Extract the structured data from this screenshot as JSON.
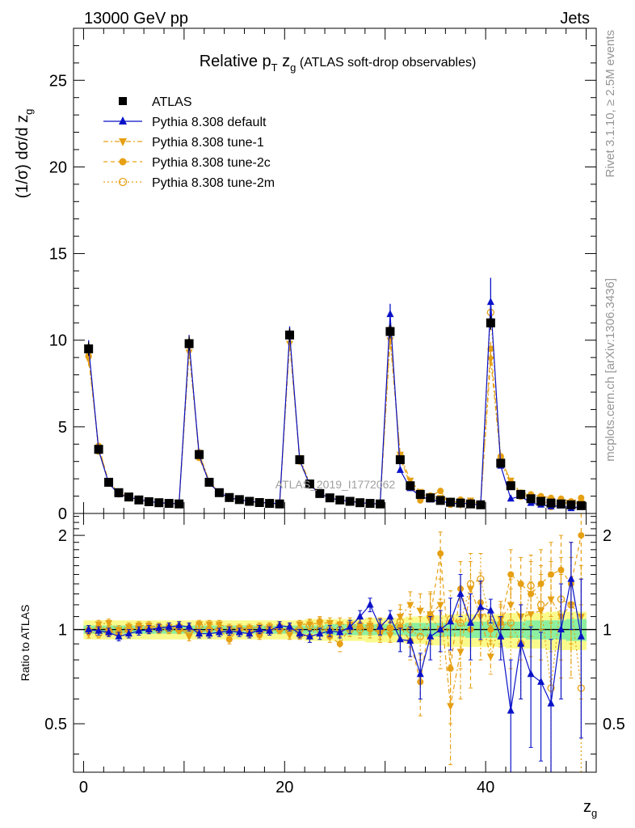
{
  "header": {
    "left": "13000 GeV pp",
    "right": "Jets"
  },
  "side_text": {
    "rivet": "Rivet 3.1.10, ≥ 2.5M events",
    "mcplots": "mcplots.cern.ch [arXiv:1306.3436]"
  },
  "watermark": "ATLAS_2019_I1772062",
  "colors": {
    "atlas": "#000000",
    "default": "#0a12c8",
    "orange": "#e6a014",
    "band_green": "#8cf0a0",
    "band_yellow": "#fafa8c"
  },
  "chart_data": [
    {
      "type": "line",
      "title": "Relative p",
      "title_sub": "T",
      "title_mid": " z",
      "title_sub2": "g",
      "title_tail": " (ATLAS soft-drop observables)",
      "ylabel": "(1/σ) dσ/d z",
      "ylabel_sub": "g",
      "xlim": [
        -1,
        51
      ],
      "ylim": [
        0,
        28
      ],
      "yticks": [
        0,
        5,
        10,
        15,
        20,
        25
      ],
      "x": [
        0.5,
        1.5,
        2.5,
        3.5,
        4.5,
        5.5,
        6.5,
        7.5,
        8.5,
        9.5,
        10.5,
        11.5,
        12.5,
        13.5,
        14.5,
        15.5,
        16.5,
        17.5,
        18.5,
        19.5,
        20.5,
        21.5,
        22.5,
        23.5,
        24.5,
        25.5,
        26.5,
        27.5,
        28.5,
        29.5,
        30.5,
        31.5,
        32.5,
        33.5,
        34.5,
        35.5,
        36.5,
        37.5,
        38.5,
        39.5,
        40.5,
        41.5,
        42.5,
        43.5,
        44.5,
        45.5,
        46.5,
        47.5,
        48.5,
        49.5
      ],
      "series": [
        {
          "name": "ATLAS",
          "marker": "square",
          "values": [
            9.5,
            3.7,
            1.8,
            1.2,
            0.95,
            0.78,
            0.68,
            0.62,
            0.58,
            0.55,
            9.8,
            3.4,
            1.8,
            1.2,
            0.92,
            0.8,
            0.7,
            0.63,
            0.58,
            0.55,
            10.3,
            3.1,
            1.7,
            1.15,
            0.9,
            0.78,
            0.7,
            0.62,
            0.58,
            0.55,
            10.5,
            3.1,
            1.6,
            1.1,
            0.9,
            0.75,
            0.65,
            0.6,
            0.55,
            0.5,
            11.0,
            2.9,
            1.6,
            1.1,
            0.85,
            0.7,
            0.6,
            0.55,
            0.5,
            0.45
          ]
        },
        {
          "name": "Pythia 8.308 default",
          "marker": "triangle",
          "values": [
            9.6,
            3.65,
            1.75,
            1.1,
            0.95,
            0.8,
            0.68,
            0.62,
            0.58,
            0.56,
            9.9,
            3.35,
            1.75,
            1.2,
            0.9,
            0.8,
            0.7,
            0.64,
            0.6,
            0.56,
            10.4,
            3.05,
            1.65,
            1.15,
            0.88,
            0.78,
            0.7,
            0.62,
            0.57,
            0.55,
            11.5,
            2.5,
            1.45,
            1.0,
            0.8,
            0.7,
            0.6,
            0.55,
            0.6,
            0.45,
            12.2,
            2.75,
            0.85,
            1.0,
            0.6,
            0.5,
            0.4,
            0.45,
            0.3,
            0.4
          ]
        },
        {
          "name": "Pythia 8.308 tune-1",
          "marker": "triangle-down",
          "values": [
            8.9,
            3.8,
            1.85,
            1.2,
            0.92,
            0.8,
            0.7,
            0.62,
            0.6,
            0.56,
            9.3,
            3.5,
            1.85,
            1.22,
            0.92,
            0.8,
            0.7,
            0.64,
            0.59,
            0.56,
            9.8,
            3.2,
            1.75,
            1.2,
            0.95,
            0.8,
            0.72,
            0.64,
            0.6,
            0.56,
            10.0,
            3.4,
            1.9,
            1.25,
            1.0,
            0.9,
            0.7,
            0.5,
            0.75,
            0.55,
            8.9,
            3.1,
            1.9,
            1.2,
            0.95,
            0.8,
            0.75,
            0.6,
            0.6,
            0.6
          ]
        },
        {
          "name": "Pythia 8.308 tune-2c",
          "marker": "circle",
          "values": [
            9.1,
            3.9,
            1.8,
            1.1,
            0.93,
            0.8,
            0.7,
            0.62,
            0.6,
            0.55,
            9.9,
            3.2,
            1.8,
            1.2,
            0.85,
            0.82,
            0.7,
            0.6,
            0.6,
            0.55,
            10.2,
            3.0,
            1.65,
            1.2,
            0.85,
            0.8,
            0.72,
            0.64,
            0.58,
            0.55,
            10.6,
            3.2,
            1.7,
            0.75,
            1.0,
            1.3,
            0.5,
            0.8,
            0.6,
            0.5,
            9.5,
            3.3,
            1.8,
            1.2,
            1.1,
            1.0,
            0.9,
            0.85,
            0.7,
            0.9
          ]
        },
        {
          "name": "Pythia 8.308 tune-2m",
          "marker": "circle-open",
          "values": [
            9.4,
            3.6,
            1.75,
            1.18,
            0.95,
            0.8,
            0.68,
            0.62,
            0.58,
            0.55,
            9.7,
            3.5,
            1.8,
            1.2,
            0.9,
            0.8,
            0.7,
            0.62,
            0.58,
            0.55,
            10.3,
            3.1,
            1.75,
            1.15,
            0.9,
            0.78,
            0.7,
            0.62,
            0.58,
            0.55,
            10.6,
            3.3,
            1.6,
            1.1,
            1.0,
            0.75,
            0.7,
            0.65,
            0.7,
            0.55,
            11.6,
            3.0,
            1.7,
            1.0,
            1.0,
            0.85,
            0.4,
            0.7,
            0.6,
            0.45
          ]
        }
      ]
    },
    {
      "type": "line",
      "ylabel": "Ratio to ATLAS",
      "xlabel": "z",
      "xlabel_sub": "g",
      "xlim": [
        -1,
        51
      ],
      "ylim": [
        0.35,
        2.35
      ],
      "yticks": [
        0.5,
        1,
        2
      ],
      "xticks": [
        0,
        20,
        40
      ],
      "reference": 1,
      "band_green_halfwidth": [
        0.03,
        0.03,
        0.03,
        0.03,
        0.03,
        0.03,
        0.03,
        0.03,
        0.03,
        0.03,
        0.03,
        0.03,
        0.03,
        0.03,
        0.03,
        0.03,
        0.03,
        0.03,
        0.03,
        0.03,
        0.03,
        0.03,
        0.03,
        0.03,
        0.04,
        0.04,
        0.04,
        0.04,
        0.04,
        0.04,
        0.04,
        0.04,
        0.05,
        0.05,
        0.05,
        0.05,
        0.05,
        0.05,
        0.06,
        0.06,
        0.06,
        0.06,
        0.06,
        0.06,
        0.07,
        0.07,
        0.07,
        0.07,
        0.08,
        0.08
      ],
      "band_yellow_halfwidth": [
        0.07,
        0.07,
        0.07,
        0.07,
        0.07,
        0.07,
        0.07,
        0.07,
        0.07,
        0.07,
        0.07,
        0.07,
        0.07,
        0.07,
        0.07,
        0.07,
        0.07,
        0.07,
        0.07,
        0.07,
        0.07,
        0.07,
        0.08,
        0.08,
        0.08,
        0.08,
        0.08,
        0.08,
        0.09,
        0.09,
        0.09,
        0.09,
        0.1,
        0.1,
        0.11,
        0.11,
        0.12,
        0.12,
        0.12,
        0.12,
        0.12,
        0.12,
        0.13,
        0.13,
        0.13,
        0.13,
        0.14,
        0.14,
        0.14,
        0.14
      ],
      "series": [
        {
          "name": "Pythia 8.308 default",
          "marker": "triangle",
          "values": [
            1.0,
            0.99,
            0.98,
            0.95,
            0.97,
            0.99,
            1.0,
            1.01,
            1.02,
            1.03,
            1.02,
            0.97,
            0.97,
            0.98,
            0.99,
            0.98,
            0.97,
            1.0,
            0.99,
            1.03,
            1.02,
            0.97,
            0.95,
            0.97,
            0.99,
            0.98,
            1.02,
            1.1,
            1.2,
            1.02,
            1.1,
            0.93,
            0.92,
            0.72,
            0.95,
            1.0,
            1.06,
            1.3,
            1.05,
            1.18,
            1.15,
            0.95,
            0.55,
            0.9,
            0.72,
            0.68,
            0.58,
            1.0,
            1.45,
            0.95
          ],
          "err": [
            0.03,
            0.03,
            0.03,
            0.03,
            0.03,
            0.03,
            0.03,
            0.03,
            0.03,
            0.03,
            0.03,
            0.03,
            0.03,
            0.03,
            0.03,
            0.03,
            0.03,
            0.03,
            0.03,
            0.03,
            0.03,
            0.03,
            0.04,
            0.04,
            0.04,
            0.04,
            0.05,
            0.05,
            0.06,
            0.06,
            0.05,
            0.08,
            0.1,
            0.12,
            0.15,
            0.15,
            0.2,
            0.2,
            0.25,
            0.25,
            0.1,
            0.15,
            0.25,
            0.3,
            0.3,
            0.3,
            0.35,
            0.4,
            0.45,
            0.5
          ]
        },
        {
          "name": "Pythia 8.308 tune-1",
          "marker": "triangle-down",
          "values": [
            0.97,
            1.04,
            1.05,
            1.0,
            1.02,
            1.03,
            1.03,
            1.02,
            1.02,
            1.02,
            0.95,
            1.04,
            1.04,
            1.04,
            1.01,
            1.01,
            1.01,
            1.02,
            1.02,
            1.02,
            0.96,
            1.04,
            1.04,
            1.05,
            1.05,
            1.04,
            1.04,
            1.03,
            1.03,
            1.02,
            0.96,
            1.1,
            1.2,
            1.15,
            1.12,
            1.2,
            0.57,
            0.85,
            1.35,
            1.1,
            0.82,
            1.08,
            1.2,
            1.1,
            1.12,
            1.15,
            1.25,
            1.1,
            1.2,
            1.1
          ],
          "err": [
            0.03,
            0.03,
            0.03,
            0.03,
            0.03,
            0.03,
            0.03,
            0.03,
            0.03,
            0.03,
            0.03,
            0.03,
            0.03,
            0.03,
            0.03,
            0.03,
            0.03,
            0.03,
            0.03,
            0.03,
            0.03,
            0.03,
            0.04,
            0.04,
            0.04,
            0.05,
            0.05,
            0.06,
            0.06,
            0.07,
            0.05,
            0.1,
            0.12,
            0.15,
            0.2,
            0.25,
            0.2,
            0.25,
            0.3,
            0.3,
            0.1,
            0.15,
            0.25,
            0.3,
            0.3,
            0.35,
            0.4,
            0.4,
            0.5,
            0.5
          ]
        },
        {
          "name": "Pythia 8.308 tune-2c",
          "marker": "circle",
          "values": [
            1.0,
            1.02,
            1.0,
            0.97,
            0.99,
            1.02,
            1.02,
            1.01,
            1.02,
            1.0,
            1.01,
            0.98,
            1.0,
            1.0,
            0.93,
            1.01,
            0.98,
            0.96,
            1.02,
            1.0,
            1.01,
            0.96,
            0.95,
            1.06,
            0.95,
            0.9,
            1.02,
            1.02,
            1.0,
            0.98,
            1.01,
            1.02,
            0.92,
            0.68,
            1.1,
            1.75,
            0.75,
            1.35,
            1.0,
            1.22,
            1.0,
            1.05,
            1.5,
            1.4,
            1.3,
            1.4,
            1.5,
            1.55,
            1.4,
            2.0
          ],
          "err": [
            0.03,
            0.03,
            0.03,
            0.03,
            0.03,
            0.03,
            0.03,
            0.03,
            0.03,
            0.03,
            0.03,
            0.03,
            0.03,
            0.03,
            0.03,
            0.03,
            0.03,
            0.03,
            0.03,
            0.03,
            0.03,
            0.03,
            0.04,
            0.04,
            0.04,
            0.05,
            0.05,
            0.06,
            0.06,
            0.07,
            0.05,
            0.1,
            0.12,
            0.15,
            0.2,
            0.3,
            0.25,
            0.3,
            0.35,
            0.3,
            0.1,
            0.15,
            0.3,
            0.3,
            0.35,
            0.4,
            0.4,
            0.45,
            0.5,
            0.55
          ]
        },
        {
          "name": "Pythia 8.308 tune-2m",
          "marker": "circle-open",
          "values": [
            0.99,
            0.97,
            0.98,
            0.98,
            1.0,
            1.02,
            1.0,
            1.0,
            1.0,
            1.0,
            0.99,
            1.03,
            1.0,
            1.0,
            0.98,
            1.0,
            1.0,
            0.98,
            1.0,
            1.0,
            1.0,
            1.0,
            1.03,
            1.0,
            1.0,
            1.0,
            1.0,
            1.0,
            1.02,
            1.0,
            1.01,
            1.06,
            1.0,
            0.95,
            1.1,
            1.0,
            1.08,
            1.05,
            1.4,
            1.45,
            1.05,
            1.03,
            1.05,
            0.9,
            1.38,
            1.2,
            0.65,
            1.25,
            1.2,
            0.65
          ],
          "err": [
            0.03,
            0.03,
            0.03,
            0.03,
            0.03,
            0.03,
            0.03,
            0.03,
            0.03,
            0.03,
            0.03,
            0.03,
            0.03,
            0.03,
            0.03,
            0.03,
            0.03,
            0.03,
            0.03,
            0.03,
            0.03,
            0.03,
            0.04,
            0.04,
            0.04,
            0.05,
            0.05,
            0.06,
            0.06,
            0.07,
            0.05,
            0.1,
            0.12,
            0.15,
            0.2,
            0.25,
            0.25,
            0.3,
            0.35,
            0.3,
            0.1,
            0.15,
            0.3,
            0.3,
            0.35,
            0.4,
            0.4,
            0.45,
            0.5,
            0.55
          ]
        }
      ]
    }
  ]
}
